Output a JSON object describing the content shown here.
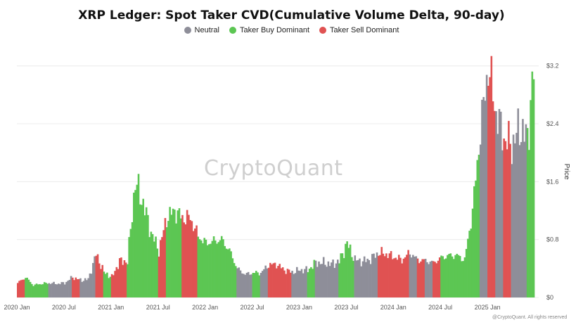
{
  "chart_data": {
    "type": "bar",
    "title": "XRP Ledger: Spot Taker CVD(Cumulative Volume Delta, 90-day)",
    "legend": [
      {
        "name": "Neutral",
        "color": "#8e8e99"
      },
      {
        "name": "Taker Buy Dominant",
        "color": "#5cc653"
      },
      {
        "name": "Taker Sell Dominant",
        "color": "#e05252"
      }
    ],
    "legend_position": "top-center",
    "ylabel": "Price",
    "y_axis_side": "right",
    "yticks": [
      "$0",
      "$0.8",
      "$1.6",
      "$2.4",
      "$3.2"
    ],
    "ylim": [
      0,
      3.45
    ],
    "xticks": [
      {
        "date": "2020-01",
        "label": "2020 Jan"
      },
      {
        "date": "2020-07",
        "label": "2020 Jul"
      },
      {
        "date": "2021-01",
        "label": "2021 Jan"
      },
      {
        "date": "2021-07",
        "label": "2021 Jul"
      },
      {
        "date": "2022-01",
        "label": "2022 Jan"
      },
      {
        "date": "2022-07",
        "label": "2022 Jul"
      },
      {
        "date": "2023-01",
        "label": "2023 Jan"
      },
      {
        "date": "2023-07",
        "label": "2023 Jul"
      },
      {
        "date": "2024-01",
        "label": "2024 Jan"
      },
      {
        "date": "2024-07",
        "label": "2024 Jul"
      },
      {
        "date": "2025-01",
        "label": "2025 Jan"
      }
    ],
    "x_range": [
      "2020-01",
      "2025-07"
    ],
    "grid": "horizontal",
    "points": [
      {
        "date": "2020-01",
        "price": 0.2,
        "state": "Taker Sell Dominant"
      },
      {
        "date": "2020-02",
        "price": 0.28,
        "state": "Taker Buy Dominant"
      },
      {
        "date": "2020-03",
        "price": 0.17,
        "state": "Taker Buy Dominant"
      },
      {
        "date": "2020-04",
        "price": 0.19,
        "state": "Taker Buy Dominant"
      },
      {
        "date": "2020-05",
        "price": 0.2,
        "state": "Neutral"
      },
      {
        "date": "2020-06",
        "price": 0.19,
        "state": "Neutral"
      },
      {
        "date": "2020-07",
        "price": 0.2,
        "state": "Neutral"
      },
      {
        "date": "2020-08",
        "price": 0.28,
        "state": "Taker Sell Dominant"
      },
      {
        "date": "2020-09",
        "price": 0.24,
        "state": "Neutral"
      },
      {
        "date": "2020-10",
        "price": 0.25,
        "state": "Neutral"
      },
      {
        "date": "2020-11",
        "price": 0.6,
        "state": "Taker Sell Dominant"
      },
      {
        "date": "2020-12",
        "price": 0.35,
        "state": "Taker Buy Dominant"
      },
      {
        "date": "2021-01",
        "price": 0.28,
        "state": "Taker Sell Dominant"
      },
      {
        "date": "2021-02",
        "price": 0.5,
        "state": "Taker Sell Dominant"
      },
      {
        "date": "2021-03",
        "price": 0.5,
        "state": "Taker Buy Dominant"
      },
      {
        "date": "2021-04",
        "price": 1.6,
        "state": "Taker Buy Dominant"
      },
      {
        "date": "2021-05",
        "price": 1.3,
        "state": "Taker Buy Dominant"
      },
      {
        "date": "2021-06",
        "price": 0.9,
        "state": "Taker Buy Dominant"
      },
      {
        "date": "2021-07",
        "price": 0.65,
        "state": "Taker Sell Dominant"
      },
      {
        "date": "2021-08",
        "price": 1.1,
        "state": "Taker Buy Dominant"
      },
      {
        "date": "2021-09",
        "price": 1.2,
        "state": "Taker Buy Dominant"
      },
      {
        "date": "2021-10",
        "price": 1.1,
        "state": "Taker Sell Dominant"
      },
      {
        "date": "2021-11",
        "price": 1.1,
        "state": "Taker Sell Dominant"
      },
      {
        "date": "2021-12",
        "price": 0.85,
        "state": "Taker Buy Dominant"
      },
      {
        "date": "2022-01",
        "price": 0.75,
        "state": "Taker Buy Dominant"
      },
      {
        "date": "2022-02",
        "price": 0.78,
        "state": "Taker Buy Dominant"
      },
      {
        "date": "2022-03",
        "price": 0.8,
        "state": "Taker Buy Dominant"
      },
      {
        "date": "2022-04",
        "price": 0.65,
        "state": "Taker Buy Dominant"
      },
      {
        "date": "2022-05",
        "price": 0.4,
        "state": "Neutral"
      },
      {
        "date": "2022-06",
        "price": 0.32,
        "state": "Neutral"
      },
      {
        "date": "2022-07",
        "price": 0.34,
        "state": "Taker Buy Dominant"
      },
      {
        "date": "2022-08",
        "price": 0.34,
        "state": "Neutral"
      },
      {
        "date": "2022-09",
        "price": 0.45,
        "state": "Taker Sell Dominant"
      },
      {
        "date": "2022-10",
        "price": 0.46,
        "state": "Taker Sell Dominant"
      },
      {
        "date": "2022-11",
        "price": 0.38,
        "state": "Taker Sell Dominant"
      },
      {
        "date": "2022-12",
        "price": 0.35,
        "state": "Neutral"
      },
      {
        "date": "2023-01",
        "price": 0.38,
        "state": "Neutral"
      },
      {
        "date": "2023-02",
        "price": 0.38,
        "state": "Taker Buy Dominant"
      },
      {
        "date": "2023-03",
        "price": 0.48,
        "state": "Neutral"
      },
      {
        "date": "2023-04",
        "price": 0.48,
        "state": "Neutral"
      },
      {
        "date": "2023-05",
        "price": 0.46,
        "state": "Neutral"
      },
      {
        "date": "2023-06",
        "price": 0.5,
        "state": "Taker Buy Dominant"
      },
      {
        "date": "2023-07",
        "price": 0.75,
        "state": "Taker Buy Dominant"
      },
      {
        "date": "2023-08",
        "price": 0.52,
        "state": "Neutral"
      },
      {
        "date": "2023-09",
        "price": 0.5,
        "state": "Neutral"
      },
      {
        "date": "2023-10",
        "price": 0.53,
        "state": "Neutral"
      },
      {
        "date": "2023-11",
        "price": 0.62,
        "state": "Taker Sell Dominant"
      },
      {
        "date": "2023-12",
        "price": 0.6,
        "state": "Taker Sell Dominant"
      },
      {
        "date": "2024-01",
        "price": 0.56,
        "state": "Taker Sell Dominant"
      },
      {
        "date": "2024-02",
        "price": 0.52,
        "state": "Taker Sell Dominant"
      },
      {
        "date": "2024-03",
        "price": 0.62,
        "state": "Neutral"
      },
      {
        "date": "2024-04",
        "price": 0.52,
        "state": "Taker Sell Dominant"
      },
      {
        "date": "2024-05",
        "price": 0.51,
        "state": "Neutral"
      },
      {
        "date": "2024-06",
        "price": 0.48,
        "state": "Taker Sell Dominant"
      },
      {
        "date": "2024-07",
        "price": 0.55,
        "state": "Taker Buy Dominant"
      },
      {
        "date": "2024-08",
        "price": 0.58,
        "state": "Taker Buy Dominant"
      },
      {
        "date": "2024-09",
        "price": 0.58,
        "state": "Taker Buy Dominant"
      },
      {
        "date": "2024-10",
        "price": 0.52,
        "state": "Taker Buy Dominant"
      },
      {
        "date": "2024-11",
        "price": 1.2,
        "state": "Taker Buy Dominant"
      },
      {
        "date": "2024-12",
        "price": 2.3,
        "state": "Neutral"
      },
      {
        "date": "2025-01",
        "price": 3.2,
        "state": "Taker Sell Dominant"
      },
      {
        "date": "2025-02",
        "price": 2.55,
        "state": "Neutral"
      },
      {
        "date": "2025-03",
        "price": 2.2,
        "state": "Taker Sell Dominant"
      },
      {
        "date": "2025-04",
        "price": 2.1,
        "state": "Neutral"
      },
      {
        "date": "2025-05",
        "price": 2.35,
        "state": "Neutral"
      },
      {
        "date": "2025-06",
        "price": 2.2,
        "state": "Taker Buy Dominant"
      },
      {
        "date": "2025-07",
        "price": 3.4,
        "state": "Taker Buy Dominant"
      }
    ]
  },
  "watermark": "CryptoQuant",
  "copyright": "@CryptoQuant. All rights reserved"
}
